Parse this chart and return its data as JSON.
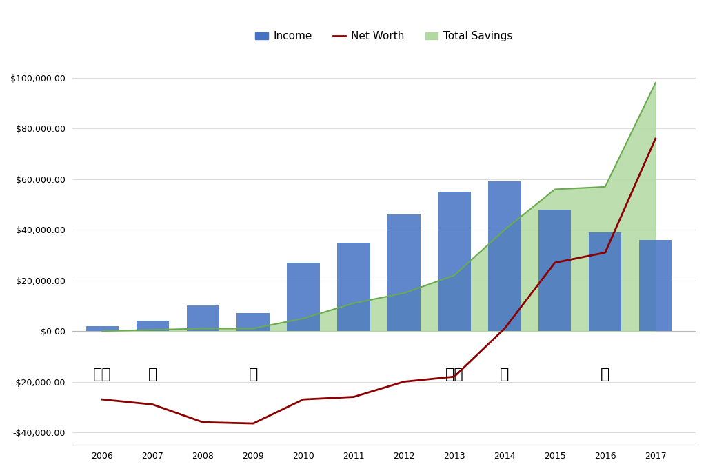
{
  "years": [
    2006,
    2007,
    2008,
    2009,
    2010,
    2011,
    2012,
    2013,
    2014,
    2015,
    2016,
    2017
  ],
  "income": [
    2000,
    4000,
    10000,
    7000,
    27000,
    35000,
    46000,
    55000,
    59000,
    48000,
    39000,
    36000
  ],
  "net_worth": [
    -27000,
    -29000,
    -36000,
    -36500,
    -27000,
    -26000,
    -20000,
    -18000,
    1000,
    27000,
    31000,
    76000
  ],
  "total_savings": [
    0,
    500,
    1000,
    1000,
    5000,
    11000,
    15000,
    22000,
    40000,
    56000,
    57000,
    98000
  ],
  "background_color": "#ffffff",
  "bar_color": "#4472C4",
  "net_worth_color": "#8B0000",
  "savings_color_fill": "#b2d9a0",
  "savings_color_line": "#6aaa50",
  "grid_color": "#dddddd",
  "ylim": [
    -45000,
    107000
  ],
  "yticks": [
    -40000,
    -20000,
    0,
    20000,
    40000,
    60000,
    80000,
    100000
  ],
  "xlim": [
    2005.4,
    2017.8
  ],
  "legend_labels": [
    "Income",
    "Net Worth",
    "Total Savings"
  ],
  "axis_fontsize": 9,
  "bar_width": 0.65
}
